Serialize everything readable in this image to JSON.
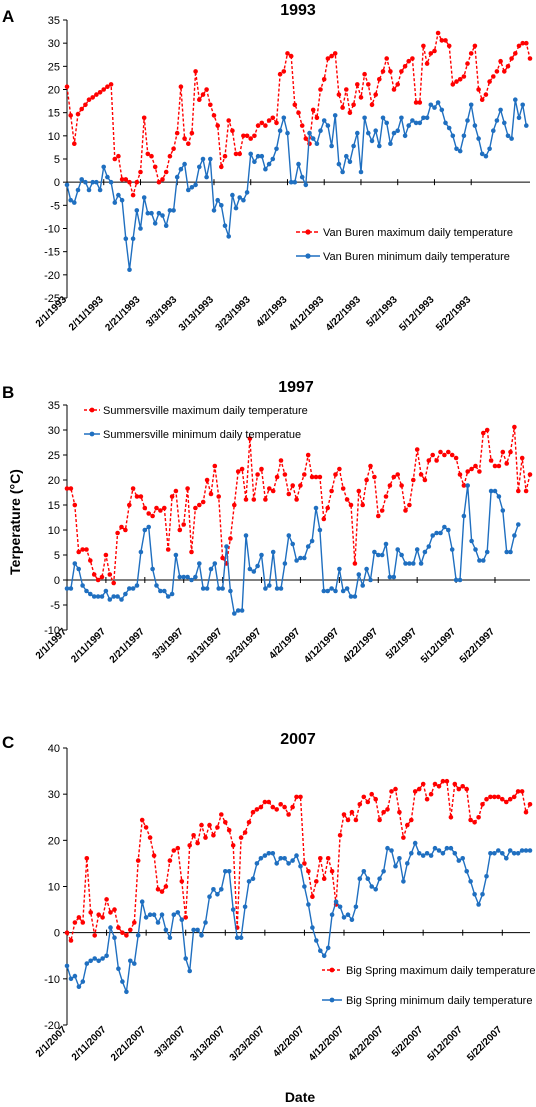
{
  "ylabel": "Terperature (°C)",
  "xlabel": "Date",
  "chart_data": [
    {
      "panel": "A",
      "type": "line",
      "title": "1993",
      "ylim": [
        -25,
        35
      ],
      "yticks": [
        -25,
        -20,
        -15,
        -10,
        -5,
        0,
        5,
        10,
        15,
        20,
        25,
        30,
        35
      ],
      "x_start": "2/1/1993",
      "x_end": "5/31/1993",
      "x_tick_labels": [
        "2/1/1993",
        "2/11/1993",
        "2/21/1993",
        "3/3/1993",
        "3/13/1993",
        "3/23/1993",
        "4/2/1993",
        "4/12/1993",
        "4/22/1993",
        "5/2/1993",
        "5/12/1993",
        "5/22/1993"
      ],
      "legend_position": "right",
      "series": [
        {
          "name": "Van Buren maximum daily temperature",
          "color": "#ff0000",
          "style": "dashed",
          "values": [
            20.6,
            14.4,
            8.3,
            14.7,
            15.8,
            16.7,
            17.8,
            18.3,
            18.9,
            19.4,
            20.0,
            20.6,
            21.1,
            5.0,
            5.6,
            0.6,
            0.6,
            0.0,
            -2.8,
            0.0,
            2.2,
            13.9,
            6.1,
            5.6,
            3.3,
            0.0,
            0.6,
            2.2,
            5.6,
            7.2,
            10.6,
            20.6,
            9.4,
            8.3,
            10.6,
            23.9,
            17.8,
            18.9,
            20.0,
            16.7,
            14.4,
            12.2,
            3.3,
            5.6,
            13.3,
            11.1,
            6.1,
            6.1,
            10.0,
            10.0,
            9.4,
            10.0,
            12.2,
            12.8,
            12.2,
            13.3,
            13.9,
            12.8,
            23.3,
            23.9,
            27.8,
            27.2,
            16.7,
            15.0,
            12.2,
            9.4,
            8.3,
            15.6,
            13.9,
            20.0,
            22.2,
            26.7,
            27.2,
            27.8,
            18.9,
            16.1,
            20.0,
            15.0,
            16.7,
            21.1,
            18.3,
            23.3,
            21.1,
            16.7,
            18.9,
            22.2,
            23.9,
            26.7,
            23.9,
            20.0,
            21.1,
            23.9,
            25.0,
            26.1,
            26.7,
            17.2,
            17.2,
            29.4,
            25.6,
            27.8,
            28.3,
            32.2,
            30.6,
            30.6,
            29.4,
            21.1,
            21.7,
            22.2,
            22.8,
            25.6,
            27.8,
            29.4,
            20.0,
            17.8,
            18.9,
            21.7,
            22.8,
            23.9,
            26.1,
            23.9,
            25.0,
            26.7,
            27.8,
            29.4,
            30.0,
            30.0,
            26.7
          ]
        },
        {
          "name": "Van Buren minimum daily temperature",
          "color": "#1f6fc0",
          "style": "solid",
          "values": [
            -0.6,
            -3.9,
            -4.4,
            -1.7,
            0.6,
            0.0,
            -1.7,
            0.0,
            0.0,
            -1.7,
            3.3,
            1.1,
            0.0,
            -4.4,
            -2.8,
            -3.9,
            -12.2,
            -18.9,
            -12.2,
            -6.1,
            -10.0,
            -3.3,
            -6.7,
            -6.7,
            -8.9,
            -6.7,
            -7.2,
            -9.4,
            -6.1,
            -6.1,
            1.1,
            2.8,
            3.9,
            -1.7,
            -1.1,
            -0.6,
            3.3,
            5.0,
            1.1,
            5.0,
            -6.1,
            -3.9,
            -5.0,
            -9.4,
            -11.7,
            -2.8,
            -5.6,
            -3.3,
            -3.9,
            -2.2,
            6.1,
            4.4,
            5.6,
            5.6,
            2.8,
            3.9,
            5.0,
            7.2,
            11.1,
            13.9,
            10.6,
            0.0,
            0.0,
            3.9,
            1.1,
            -0.6,
            10.6,
            9.4,
            8.3,
            11.1,
            13.3,
            12.2,
            7.8,
            14.4,
            3.9,
            2.2,
            5.6,
            4.4,
            7.8,
            10.6,
            2.2,
            13.9,
            10.6,
            8.9,
            11.1,
            7.8,
            13.9,
            12.8,
            8.3,
            10.6,
            11.1,
            13.9,
            10.0,
            12.2,
            13.3,
            12.8,
            12.8,
            13.9,
            13.9,
            16.7,
            16.1,
            17.2,
            15.6,
            12.8,
            11.7,
            10.0,
            7.2,
            6.7,
            10.0,
            13.3,
            16.7,
            12.2,
            9.4,
            6.1,
            5.6,
            7.2,
            11.1,
            13.3,
            15.6,
            12.8,
            10.0,
            9.4,
            17.8,
            13.9,
            16.7,
            12.2
          ]
        }
      ]
    },
    {
      "panel": "B",
      "type": "line",
      "title": "1997",
      "ylim": [
        -10,
        35
      ],
      "yticks": [
        -10,
        -5,
        0,
        5,
        10,
        15,
        20,
        25,
        30,
        35
      ],
      "x_start": "2/1/1997",
      "x_end": "5/31/1997",
      "x_tick_labels": [
        "2/1/1997",
        "2/11/1997",
        "2/21/1997",
        "3/3/1997",
        "3/13/1997",
        "3/23/1997",
        "4/2/1997",
        "4/12/1997",
        "4/22/1997",
        "5/2/1997",
        "5/12/1997",
        "5/22/1997"
      ],
      "legend_position": "top-left",
      "series": [
        {
          "name": "Summersville maximum daily temperature",
          "color": "#ff0000",
          "style": "dashed",
          "values": [
            18.3,
            18.3,
            15.0,
            5.6,
            6.1,
            6.1,
            3.9,
            1.1,
            0.0,
            0.6,
            5.0,
            1.1,
            -0.6,
            9.4,
            10.6,
            10.0,
            15.0,
            18.3,
            16.7,
            16.7,
            14.4,
            13.3,
            12.8,
            14.4,
            13.9,
            14.4,
            6.1,
            16.7,
            17.8,
            10.0,
            11.1,
            18.3,
            5.6,
            14.4,
            15.0,
            15.6,
            20.0,
            17.2,
            22.8,
            16.7,
            4.4,
            3.3,
            8.3,
            15.0,
            21.7,
            22.2,
            16.1,
            28.3,
            16.1,
            21.1,
            22.2,
            16.1,
            18.3,
            17.8,
            20.6,
            23.9,
            21.1,
            17.2,
            18.9,
            16.1,
            18.9,
            21.1,
            25.0,
            20.6,
            20.6,
            20.6,
            12.2,
            14.4,
            17.8,
            21.1,
            22.2,
            18.3,
            16.1,
            15.0,
            3.3,
            17.8,
            15.0,
            20.0,
            22.8,
            20.6,
            12.8,
            13.9,
            16.7,
            18.9,
            20.6,
            21.1,
            18.9,
            13.9,
            15.0,
            20.0,
            26.1,
            21.1,
            20.0,
            23.9,
            25.0,
            23.9,
            25.6,
            25.0,
            25.6,
            25.0,
            24.4,
            21.1,
            18.9,
            21.7,
            22.2,
            22.8,
            21.7,
            29.4,
            30.0,
            23.9,
            22.8,
            22.8,
            25.6,
            23.3,
            25.6,
            30.6,
            17.8,
            24.4,
            17.8,
            21.1
          ]
        },
        {
          "name": "Summersville minimum daily temperatue",
          "color": "#1f6fc0",
          "style": "solid",
          "values": [
            -1.7,
            -1.7,
            3.3,
            2.2,
            -1.1,
            -2.2,
            -2.8,
            -3.3,
            -3.3,
            -3.3,
            -2.2,
            -3.9,
            -3.3,
            -3.3,
            -3.9,
            -2.8,
            -1.7,
            -1.7,
            -1.1,
            5.6,
            10.0,
            10.6,
            2.2,
            -1.1,
            -2.2,
            -2.2,
            -3.3,
            -2.8,
            5.0,
            0.6,
            0.6,
            0.6,
            0.0,
            0.6,
            3.3,
            -1.7,
            -1.7,
            2.2,
            3.3,
            -1.7,
            -1.7,
            6.7,
            -2.2,
            -6.7,
            -6.1,
            -6.1,
            8.9,
            2.2,
            1.7,
            2.8,
            5.0,
            -1.7,
            -1.1,
            5.6,
            -1.7,
            -1.7,
            3.3,
            8.9,
            7.2,
            3.9,
            4.4,
            4.4,
            6.7,
            7.8,
            14.4,
            10.0,
            -2.2,
            -2.2,
            -1.7,
            -2.2,
            2.2,
            -2.2,
            -1.7,
            -3.3,
            -3.3,
            1.1,
            -1.1,
            2.2,
            0.0,
            5.6,
            5.0,
            5.0,
            7.2,
            0.6,
            0.6,
            6.1,
            5.0,
            3.3,
            3.3,
            3.3,
            6.1,
            3.3,
            5.6,
            6.7,
            8.9,
            9.4,
            9.4,
            10.6,
            10.0,
            6.1,
            0.0,
            0.0,
            12.8,
            18.9,
            7.8,
            6.1,
            3.9,
            3.9,
            5.6,
            17.8,
            17.8,
            16.7,
            13.9,
            5.6,
            5.6,
            8.9,
            11.1
          ]
        }
      ]
    },
    {
      "panel": "C",
      "type": "line",
      "title": "2007",
      "ylim": [
        -20,
        40
      ],
      "yticks": [
        -20,
        -10,
        0,
        10,
        20,
        30,
        40
      ],
      "x_start": "2/1/2007",
      "x_end": "5/31/2007",
      "x_tick_labels": [
        "2/1/2007",
        "2/11/2007",
        "2/21/2007",
        "3/3/2007",
        "3/13/2007",
        "3/23/2007",
        "4/2/2007",
        "4/12/2007",
        "4/22/2007",
        "5/2/2007",
        "5/12/2007",
        "5/22/2007"
      ],
      "legend_position": "bottom-right",
      "series": [
        {
          "name": "Big Spring maximum daily temperature",
          "color": "#ff0000",
          "style": "dashed",
          "values": [
            0.0,
            -1.7,
            2.2,
            3.3,
            2.2,
            16.1,
            4.4,
            -0.6,
            3.9,
            3.3,
            7.2,
            4.4,
            5.0,
            1.1,
            0.0,
            -0.6,
            0.6,
            2.2,
            15.6,
            24.4,
            22.8,
            20.6,
            16.7,
            9.4,
            8.9,
            10.0,
            15.6,
            17.8,
            18.3,
            11.1,
            3.3,
            18.9,
            21.1,
            19.4,
            23.3,
            20.6,
            23.3,
            21.1,
            22.8,
            25.6,
            23.9,
            22.2,
            18.9,
            1.1,
            20.6,
            21.7,
            23.9,
            26.1,
            26.7,
            27.2,
            28.3,
            28.3,
            27.2,
            26.7,
            27.8,
            27.2,
            25.6,
            27.2,
            29.4,
            29.4,
            15.0,
            13.3,
            7.8,
            11.1,
            16.1,
            11.7,
            16.1,
            13.3,
            6.1,
            21.1,
            25.6,
            24.4,
            26.1,
            24.4,
            27.8,
            29.4,
            28.3,
            30.0,
            28.9,
            24.4,
            26.1,
            26.7,
            30.6,
            31.1,
            26.1,
            20.6,
            23.3,
            24.4,
            30.6,
            31.1,
            32.2,
            28.9,
            30.0,
            32.2,
            31.7,
            32.8,
            32.8,
            25.0,
            32.2,
            31.1,
            31.7,
            31.1,
            24.4,
            23.9,
            25.0,
            27.8,
            28.9,
            29.4,
            29.4,
            29.4,
            28.9,
            28.3,
            28.9,
            29.4,
            30.6,
            30.6,
            26.1,
            27.8
          ]
        },
        {
          "name": "Big Spring minimum daily temperature",
          "color": "#1f6fc0",
          "style": "solid",
          "values": [
            -7.2,
            -10.0,
            -9.4,
            -11.7,
            -10.6,
            -6.7,
            -6.1,
            -5.6,
            -6.1,
            -5.6,
            -5.0,
            1.1,
            -1.1,
            -7.8,
            -10.6,
            -12.8,
            -6.1,
            -6.7,
            -0.6,
            6.7,
            3.3,
            3.9,
            3.9,
            2.2,
            3.9,
            0.6,
            -1.1,
            3.9,
            4.4,
            2.8,
            -5.6,
            -8.3,
            0.6,
            0.6,
            -0.6,
            2.2,
            7.8,
            9.4,
            8.3,
            9.4,
            13.3,
            13.3,
            5.0,
            -1.1,
            -1.1,
            5.6,
            11.1,
            11.7,
            15.0,
            16.1,
            16.7,
            17.2,
            17.2,
            15.0,
            16.1,
            16.1,
            15.0,
            15.6,
            16.7,
            14.4,
            10.0,
            6.1,
            1.1,
            -1.7,
            -3.9,
            -5.0,
            -3.3,
            3.9,
            6.7,
            5.6,
            3.3,
            3.9,
            2.8,
            5.6,
            11.7,
            13.3,
            11.7,
            10.0,
            9.4,
            11.7,
            13.3,
            18.3,
            17.8,
            14.4,
            16.1,
            11.1,
            15.0,
            17.2,
            19.4,
            17.2,
            16.7,
            17.2,
            16.7,
            18.3,
            17.8,
            17.2,
            18.3,
            18.3,
            17.2,
            15.6,
            16.1,
            13.3,
            11.1,
            8.3,
            6.1,
            8.3,
            12.2,
            17.2,
            17.2,
            17.8,
            17.2,
            16.1,
            17.8,
            17.2,
            17.2,
            17.8,
            17.8,
            17.8
          ]
        }
      ]
    }
  ]
}
